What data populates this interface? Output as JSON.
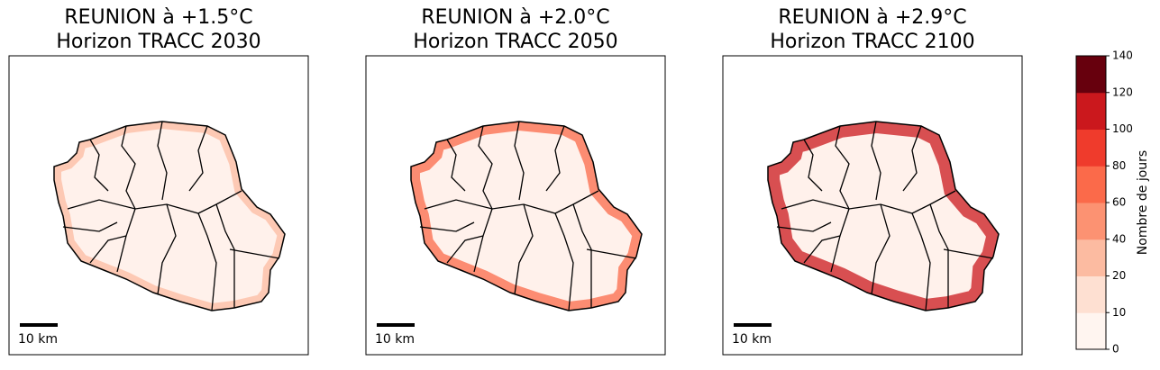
{
  "panels": [
    {
      "title": [
        "REUNION à +1.5°C",
        "Horizon TRACC 2030"
      ],
      "scale_label": "10 km"
    },
    {
      "title": [
        "REUNION à +2.0°C",
        "Horizon TRACC 2050"
      ],
      "scale_label": "10 km"
    },
    {
      "title": [
        "REUNION à +2.9°C",
        "Horizon TRACC 2100"
      ],
      "scale_label": "10 km"
    }
  ],
  "colorbar": {
    "label": "Nombre de jours",
    "ticks": [
      0,
      10,
      20,
      40,
      60,
      80,
      100,
      120,
      140
    ],
    "colors": [
      "#fff5f0",
      "#fee0d2",
      "#fcbba1",
      "#fc9272",
      "#fb6a4a",
      "#ef3b2c",
      "#cb181d",
      "#67000d"
    ]
  }
}
